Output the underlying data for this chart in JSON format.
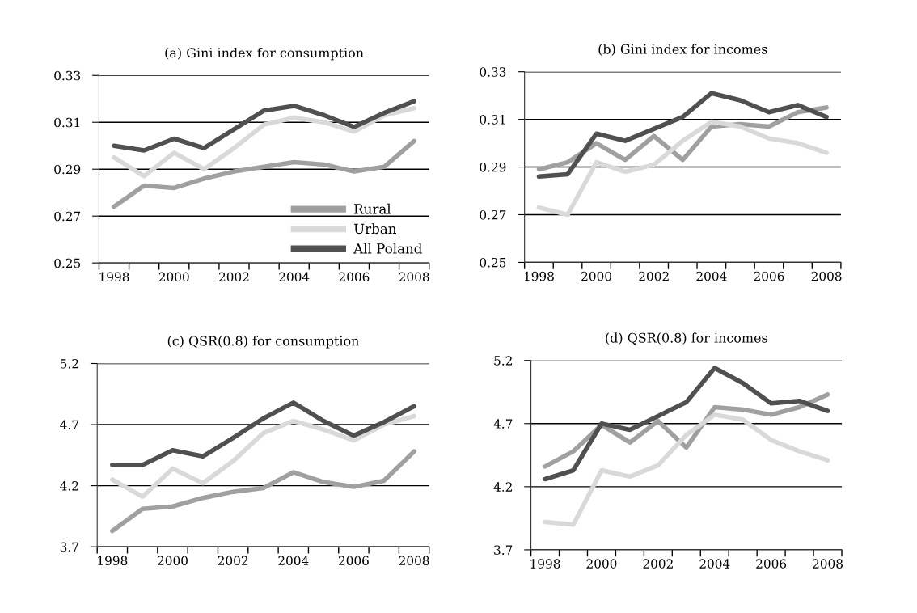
{
  "chart_data": [
    {
      "type": "line",
      "title": "(a) Gini index for consumption",
      "categories": [
        "1998",
        null,
        "2000",
        null,
        "2002",
        null,
        "2004",
        null,
        "2006",
        null,
        "2008"
      ],
      "ylim": [
        0.25,
        0.33
      ],
      "yticks": [
        0.25,
        0.27,
        0.29,
        0.31,
        0.33
      ],
      "grid": "y",
      "legend": "bottom right",
      "series": [
        {
          "name": "Rural",
          "color": "#a0a0a0",
          "values": [
            0.274,
            0.283,
            0.282,
            0.286,
            0.289,
            0.291,
            0.293,
            0.292,
            0.289,
            0.291,
            0.302
          ]
        },
        {
          "name": "Urban",
          "color": "#d9d9d9",
          "values": [
            0.295,
            0.287,
            0.297,
            0.29,
            0.299,
            0.309,
            0.312,
            0.31,
            0.306,
            0.313,
            0.316
          ]
        },
        {
          "name": "All Poland",
          "color": "#505050",
          "values": [
            0.3,
            0.298,
            0.303,
            0.299,
            0.307,
            0.315,
            0.317,
            0.313,
            0.308,
            0.314,
            0.319
          ]
        }
      ]
    },
    {
      "type": "line",
      "title": "(b) Gini index for incomes",
      "categories": [
        "1998",
        null,
        "2000",
        null,
        "2002",
        null,
        "2004",
        null,
        "2006",
        null,
        "2008"
      ],
      "ylim": [
        0.25,
        0.33
      ],
      "yticks": [
        0.25,
        0.27,
        0.29,
        0.31,
        0.33
      ],
      "grid": "y",
      "series": [
        {
          "color": "#a0a0a0",
          "values": [
            0.289,
            0.292,
            0.3,
            0.293,
            0.303,
            0.293,
            0.307,
            0.308,
            0.307,
            0.313,
            0.315
          ]
        },
        {
          "color": "#d9d9d9",
          "values": [
            0.273,
            0.27,
            0.292,
            0.288,
            0.291,
            0.301,
            0.309,
            0.307,
            0.302,
            0.3,
            0.296
          ]
        },
        {
          "color": "#505050",
          "values": [
            0.286,
            0.287,
            0.304,
            0.301,
            0.306,
            0.311,
            0.321,
            0.318,
            0.313,
            0.316,
            0.311
          ]
        }
      ]
    },
    {
      "type": "line",
      "title": "(c) QSR(0.8) for consumption",
      "categories": [
        "1998",
        null,
        "2000",
        null,
        "2002",
        null,
        "2004",
        null,
        "2006",
        null,
        "2008"
      ],
      "ylim": [
        3.7,
        5.2
      ],
      "yticks": [
        3.7,
        4.2,
        4.7,
        5.2
      ],
      "grid": "y",
      "series": [
        {
          "color": "#a0a0a0",
          "values": [
            3.83,
            4.01,
            4.03,
            4.1,
            4.15,
            4.18,
            4.31,
            4.23,
            4.19,
            4.24,
            4.48
          ]
        },
        {
          "color": "#d9d9d9",
          "values": [
            4.25,
            4.11,
            4.34,
            4.22,
            4.4,
            4.63,
            4.73,
            4.66,
            4.57,
            4.7,
            4.77
          ]
        },
        {
          "color": "#505050",
          "values": [
            4.37,
            4.37,
            4.49,
            4.44,
            4.59,
            4.75,
            4.88,
            4.73,
            4.61,
            4.72,
            4.85
          ]
        }
      ]
    },
    {
      "type": "line",
      "title": "(d) QSR(0.8) for incomes",
      "categories": [
        "1998",
        null,
        "2000",
        null,
        "2002",
        null,
        "2004",
        null,
        "2006",
        null,
        "2008"
      ],
      "ylim": [
        3.7,
        5.2
      ],
      "yticks": [
        3.7,
        4.2,
        4.7,
        5.2
      ],
      "grid": "y",
      "series": [
        {
          "color": "#a0a0a0",
          "values": [
            4.36,
            4.48,
            4.69,
            4.55,
            4.72,
            4.51,
            4.83,
            4.81,
            4.77,
            4.83,
            4.93
          ]
        },
        {
          "color": "#d9d9d9",
          "values": [
            3.92,
            3.9,
            4.33,
            4.28,
            4.37,
            4.61,
            4.77,
            4.73,
            4.57,
            4.48,
            4.41
          ]
        },
        {
          "color": "#505050",
          "values": [
            4.26,
            4.33,
            4.7,
            4.65,
            4.76,
            4.87,
            5.14,
            5.02,
            4.86,
            4.88,
            4.8
          ]
        }
      ]
    }
  ]
}
